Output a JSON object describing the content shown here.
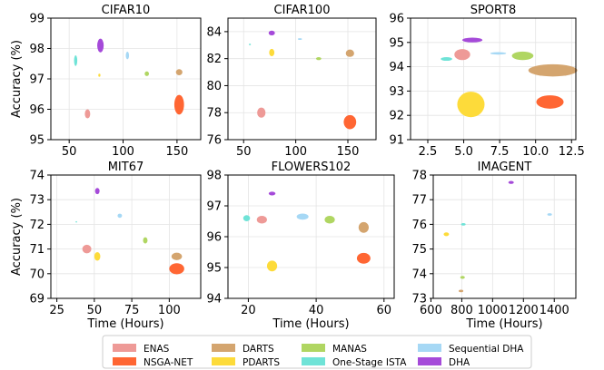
{
  "methods": [
    {
      "name": "ENAS",
      "color": "#ee9a97"
    },
    {
      "name": "NSGA-NET",
      "color": "#ff6633"
    },
    {
      "name": "DARTS",
      "color": "#d4a56f"
    },
    {
      "name": "PDARTS",
      "color": "#fddb3a"
    },
    {
      "name": "MANAS",
      "color": "#b0d662"
    },
    {
      "name": "One-Stage ISTA",
      "color": "#6fe3d7"
    },
    {
      "name": "Sequential DHA",
      "color": "#a6d8f5"
    },
    {
      "name": "DHA",
      "color": "#a54ad9"
    }
  ],
  "chart_data": [
    {
      "type": "scatter",
      "title": "CIFAR10",
      "xlabel": "",
      "ylabel": "Accuracy (%)",
      "xlim": [
        33,
        172
      ],
      "ylim": [
        95,
        99
      ],
      "xticks": [
        50,
        100,
        150
      ],
      "yticks": [
        95,
        96,
        97,
        98,
        99
      ],
      "points": [
        {
          "method": "ENAS",
          "x": 67,
          "y": 95.85,
          "w": 5,
          "h": 0.3
        },
        {
          "method": "NSGA-NET",
          "x": 152,
          "y": 96.15,
          "w": 9,
          "h": 0.65
        },
        {
          "method": "DARTS",
          "x": 152,
          "y": 97.22,
          "w": 6,
          "h": 0.2
        },
        {
          "method": "PDARTS",
          "x": 78,
          "y": 97.12,
          "w": 2,
          "h": 0.1
        },
        {
          "method": "MANAS",
          "x": 122,
          "y": 97.17,
          "w": 4,
          "h": 0.15
        },
        {
          "method": "One-Stage ISTA",
          "x": 56,
          "y": 97.6,
          "w": 3,
          "h": 0.35
        },
        {
          "method": "Sequential DHA",
          "x": 104,
          "y": 97.77,
          "w": 3,
          "h": 0.25
        },
        {
          "method": "DHA",
          "x": 79,
          "y": 98.1,
          "w": 6,
          "h": 0.45
        }
      ]
    },
    {
      "type": "scatter",
      "title": "CIFAR100",
      "xlabel": "",
      "ylabel": "",
      "xlim": [
        35,
        177
      ],
      "ylim": [
        76,
        85
      ],
      "xticks": [
        50,
        100,
        150
      ],
      "yticks": [
        76,
        78,
        80,
        82,
        84
      ],
      "points": [
        {
          "method": "ENAS",
          "x": 67,
          "y": 78.0,
          "w": 8,
          "h": 0.75
        },
        {
          "method": "NSGA-NET",
          "x": 152,
          "y": 77.3,
          "w": 12,
          "h": 1.05
        },
        {
          "method": "DARTS",
          "x": 152,
          "y": 82.4,
          "w": 8,
          "h": 0.55
        },
        {
          "method": "PDARTS",
          "x": 77,
          "y": 82.45,
          "w": 5,
          "h": 0.55
        },
        {
          "method": "MANAS",
          "x": 122,
          "y": 82.0,
          "w": 5,
          "h": 0.22
        },
        {
          "method": "One-Stage ISTA",
          "x": 56,
          "y": 83.05,
          "w": 2,
          "h": 0.12
        },
        {
          "method": "Sequential DHA",
          "x": 104,
          "y": 83.45,
          "w": 4,
          "h": 0.12
        },
        {
          "method": "DHA",
          "x": 77,
          "y": 83.9,
          "w": 6,
          "h": 0.35
        }
      ]
    },
    {
      "type": "scatter",
      "title": "SPORT8",
      "xlabel": "",
      "ylabel": "",
      "xlim": [
        1.3,
        12.8
      ],
      "ylim": [
        91,
        96
      ],
      "xticks": [
        2.5,
        5.0,
        7.5,
        10.0,
        12.5
      ],
      "yticks": [
        91,
        92,
        93,
        94,
        95,
        96
      ],
      "points": [
        {
          "method": "ENAS",
          "x": 4.9,
          "y": 94.5,
          "w": 1.1,
          "h": 0.45
        },
        {
          "method": "NSGA-NET",
          "x": 11.0,
          "y": 92.55,
          "w": 1.9,
          "h": 0.55
        },
        {
          "method": "DARTS",
          "x": 11.2,
          "y": 93.85,
          "w": 3.4,
          "h": 0.5
        },
        {
          "method": "PDARTS",
          "x": 5.5,
          "y": 92.45,
          "w": 1.9,
          "h": 1.05
        },
        {
          "method": "MANAS",
          "x": 9.1,
          "y": 94.45,
          "w": 1.5,
          "h": 0.35
        },
        {
          "method": "One-Stage ISTA",
          "x": 3.8,
          "y": 94.32,
          "w": 0.8,
          "h": 0.15
        },
        {
          "method": "Sequential DHA",
          "x": 7.4,
          "y": 94.55,
          "w": 1.1,
          "h": 0.1
        },
        {
          "method": "DHA",
          "x": 5.6,
          "y": 95.1,
          "w": 1.4,
          "h": 0.2
        }
      ]
    },
    {
      "type": "scatter",
      "title": "MIT67",
      "xlabel": "Time (Hours)",
      "ylabel": "Accuracy (%)",
      "xlim": [
        21,
        121
      ],
      "ylim": [
        69,
        74
      ],
      "xticks": [
        25,
        50,
        75,
        100
      ],
      "yticks": [
        69,
        70,
        71,
        72,
        73,
        74
      ],
      "points": [
        {
          "method": "ENAS",
          "x": 45,
          "y": 71.0,
          "w": 6,
          "h": 0.35
        },
        {
          "method": "NSGA-NET",
          "x": 105,
          "y": 70.2,
          "w": 10,
          "h": 0.45
        },
        {
          "method": "DARTS",
          "x": 105,
          "y": 70.7,
          "w": 7,
          "h": 0.3
        },
        {
          "method": "PDARTS",
          "x": 52,
          "y": 70.7,
          "w": 4,
          "h": 0.35
        },
        {
          "method": "MANAS",
          "x": 84,
          "y": 71.35,
          "w": 3,
          "h": 0.25
        },
        {
          "method": "One-Stage ISTA",
          "x": 38,
          "y": 72.1,
          "w": 1,
          "h": 0.03
        },
        {
          "method": "Sequential DHA",
          "x": 67,
          "y": 72.35,
          "w": 3,
          "h": 0.17
        },
        {
          "method": "DHA",
          "x": 52,
          "y": 73.35,
          "w": 3,
          "h": 0.25
        }
      ]
    },
    {
      "type": "scatter",
      "title": "FLOWERS102",
      "xlabel": "Time (Hours)",
      "ylabel": "",
      "xlim": [
        14,
        63
      ],
      "ylim": [
        94,
        98
      ],
      "xticks": [
        20,
        40,
        60
      ],
      "yticks": [
        94,
        95,
        96,
        97,
        98
      ],
      "points": [
        {
          "method": "ENAS",
          "x": 24,
          "y": 96.55,
          "w": 3,
          "h": 0.25
        },
        {
          "method": "NSGA-NET",
          "x": 54,
          "y": 95.3,
          "w": 4,
          "h": 0.35
        },
        {
          "method": "DARTS",
          "x": 54,
          "y": 96.3,
          "w": 3,
          "h": 0.35
        },
        {
          "method": "PDARTS",
          "x": 27,
          "y": 95.05,
          "w": 3,
          "h": 0.35
        },
        {
          "method": "MANAS",
          "x": 44,
          "y": 96.55,
          "w": 3,
          "h": 0.25
        },
        {
          "method": "One-Stage ISTA",
          "x": 19.5,
          "y": 96.6,
          "w": 2,
          "h": 0.2
        },
        {
          "method": "Sequential DHA",
          "x": 36,
          "y": 96.65,
          "w": 3.5,
          "h": 0.2
        },
        {
          "method": "DHA",
          "x": 27,
          "y": 97.4,
          "w": 2,
          "h": 0.12
        }
      ]
    },
    {
      "type": "scatter",
      "title": "IMAGENT",
      "xlabel": "Time (Hours)",
      "ylabel": "",
      "xlim": [
        615,
        1540
      ],
      "ylim": [
        73,
        78
      ],
      "xticks": [
        600,
        800,
        1000,
        1200,
        1400
      ],
      "yticks": [
        73,
        74,
        75,
        76,
        77,
        78
      ],
      "points": [
        {
          "method": "ENAS",
          "x": 795,
          "y": 73.3,
          "w": 25,
          "h": 0.08
        },
        {
          "method": "NSGA-NET",
          "x": 795,
          "y": 73.3,
          "w": 15,
          "h": 0.04
        },
        {
          "method": "DARTS",
          "x": 795,
          "y": 73.3,
          "w": 30,
          "h": 0.1
        },
        {
          "method": "PDARTS",
          "x": 700,
          "y": 75.6,
          "w": 35,
          "h": 0.15
        },
        {
          "method": "MANAS",
          "x": 805,
          "y": 73.85,
          "w": 30,
          "h": 0.12
        },
        {
          "method": "One-Stage ISTA",
          "x": 810,
          "y": 76.0,
          "w": 30,
          "h": 0.1
        },
        {
          "method": "Sequential DHA",
          "x": 1370,
          "y": 76.4,
          "w": 30,
          "h": 0.1
        },
        {
          "method": "DHA",
          "x": 1120,
          "y": 77.7,
          "w": 35,
          "h": 0.12
        }
      ]
    }
  ]
}
